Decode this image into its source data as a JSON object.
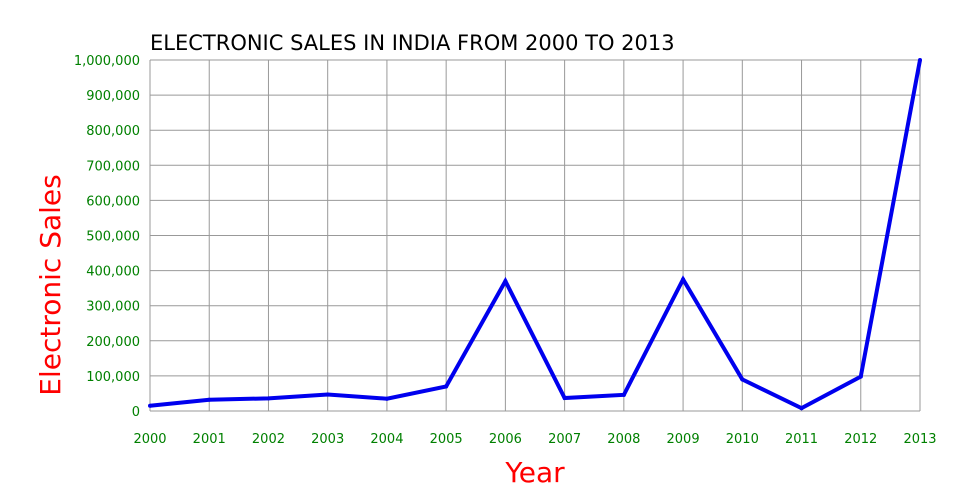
{
  "chart_data": {
    "type": "line",
    "title": "ELECTRONIC SALES IN INDIA FROM 2000 TO 2013",
    "xlabel": "Year",
    "ylabel": "Electronic Sales",
    "x": [
      "2000",
      "2001",
      "2002",
      "2003",
      "2004",
      "2005",
      "2006",
      "2007",
      "2008",
      "2009",
      "2010",
      "2011",
      "2012",
      "2013"
    ],
    "series": [
      {
        "values": [
          15000,
          32000,
          36000,
          47000,
          35000,
          70000,
          370000,
          37000,
          46000,
          375000,
          90000,
          8000,
          98000,
          1000000
        ]
      }
    ],
    "ylim": [
      0,
      1000000
    ],
    "yticks": [
      "0",
      "100,000",
      "200,000",
      "300,000",
      "400,000",
      "500,000",
      "600,000",
      "700,000",
      "800,000",
      "900,000",
      "1,000,000"
    ],
    "grid": true,
    "colors": {
      "line": "#0000ee",
      "grid": "#999999",
      "tick_labels": "#008000",
      "axis_labels": "#ff0000",
      "title": "#000000"
    }
  }
}
